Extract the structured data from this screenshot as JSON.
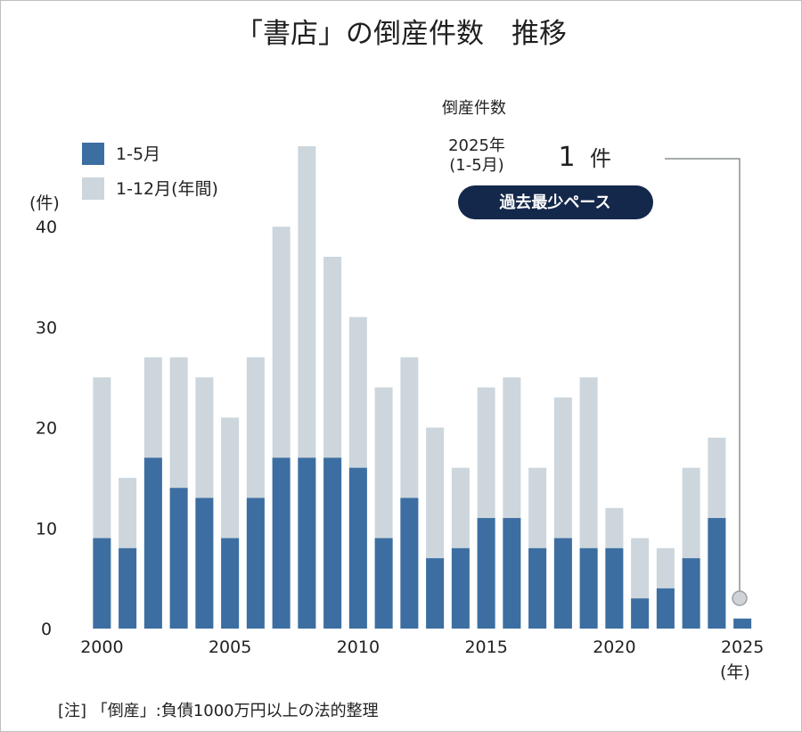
{
  "chart_data": {
    "type": "bar",
    "title": "「書店」の倒産件数　推移",
    "ylabel": "(件)",
    "xlabel": "(年)",
    "ylim": [
      0,
      47
    ],
    "yticks": [
      0,
      10,
      20,
      30,
      40
    ],
    "xtick_labels": [
      "2000",
      "2005",
      "2010",
      "2015",
      "2020",
      "2025"
    ],
    "categories": [
      "2000",
      "2001",
      "2002",
      "2003",
      "2004",
      "2005",
      "2006",
      "2007",
      "2008",
      "2009",
      "2010",
      "2011",
      "2012",
      "2013",
      "2014",
      "2015",
      "2016",
      "2017",
      "2018",
      "2019",
      "2020",
      "2021",
      "2022",
      "2023",
      "2024",
      "2025"
    ],
    "series": [
      {
        "name": "1-5月",
        "color": "#3d6ea1",
        "values": [
          9,
          8,
          17,
          14,
          13,
          9,
          13,
          17,
          17,
          17,
          16,
          9,
          13,
          7,
          8,
          11,
          11,
          8,
          9,
          8,
          8,
          3,
          4,
          7,
          11,
          1
        ]
      },
      {
        "name": "1-12月(年間)",
        "color": "#ccd6dc",
        "values": [
          25,
          15,
          27,
          27,
          25,
          21,
          27,
          40,
          48,
          37,
          31,
          24,
          27,
          20,
          16,
          24,
          25,
          16,
          23,
          25,
          12,
          9,
          8,
          16,
          19,
          null
        ]
      }
    ],
    "legend_position": "top-left",
    "grid": false
  },
  "annotation": {
    "header": "倒産件数",
    "period_year": "2025年",
    "period_range": "(1-5月)",
    "value_number": "1",
    "value_unit": "件",
    "badge": "過去最少ペース",
    "badge_color": "#14284b",
    "marker_color": "#cfd3d6"
  },
  "footnote": "[注] 「倒産」:負債1000万円以上の法的整理"
}
